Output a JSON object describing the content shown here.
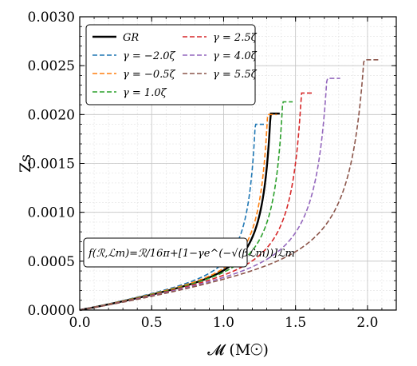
{
  "chart_data": {
    "type": "line",
    "xlabel": "𝓜 (M☉)",
    "ylabel": "Zs",
    "xlim": [
      0.0,
      2.2
    ],
    "ylim": [
      0.0,
      0.003
    ],
    "xticks": [
      0.0,
      0.5,
      1.0,
      1.5,
      2.0
    ],
    "yticks": [
      0.0,
      0.0005,
      0.001,
      0.0015,
      0.002,
      0.0025,
      0.003
    ],
    "xtick_labels": [
      "0.0",
      "0.5",
      "1.0",
      "1.5",
      "2.0"
    ],
    "ytick_labels": [
      "0.0000",
      "0.0005",
      "0.0010",
      "0.0015",
      "0.0020",
      "0.0025",
      "0.0030"
    ],
    "grid": true,
    "legend_position": "top-left",
    "annotation": "f(ℛ,ℒm)=ℛ/16π+[1−γe^(−√(βℒm))]ℒm",
    "series": [
      {
        "name": "GR",
        "color": "#000000",
        "dash": "solid",
        "mmax": 1.39,
        "zmax": 0.00201,
        "k": 0.00028,
        "p": 0.12
      },
      {
        "name": "γ = −2.0ζ",
        "color": "#1f77b4",
        "dash": "dashed",
        "mmax": 1.28,
        "zmax": 0.0019,
        "k": 0.0003,
        "p": 0.12
      },
      {
        "name": "γ = −0.5ζ",
        "color": "#ff7f0e",
        "dash": "dashed",
        "mmax": 1.37,
        "zmax": 0.002,
        "k": 0.00029,
        "p": 0.12
      },
      {
        "name": "γ = 1.0ζ",
        "color": "#2ca02c",
        "dash": "dashed",
        "mmax": 1.48,
        "zmax": 0.00213,
        "k": 0.00028,
        "p": 0.12
      },
      {
        "name": "γ = 2.5ζ",
        "color": "#d62728",
        "dash": "dashed",
        "mmax": 1.62,
        "zmax": 0.00222,
        "k": 0.00027,
        "p": 0.12
      },
      {
        "name": "γ = 4.0ζ",
        "color": "#9467bd",
        "dash": "dashed",
        "mmax": 1.81,
        "zmax": 0.00237,
        "k": 0.00026,
        "p": 0.12
      },
      {
        "name": "γ = 5.5ζ",
        "color": "#8c564b",
        "dash": "dashed",
        "mmax": 2.09,
        "zmax": 0.00256,
        "k": 0.00025,
        "p": 0.12
      }
    ]
  }
}
